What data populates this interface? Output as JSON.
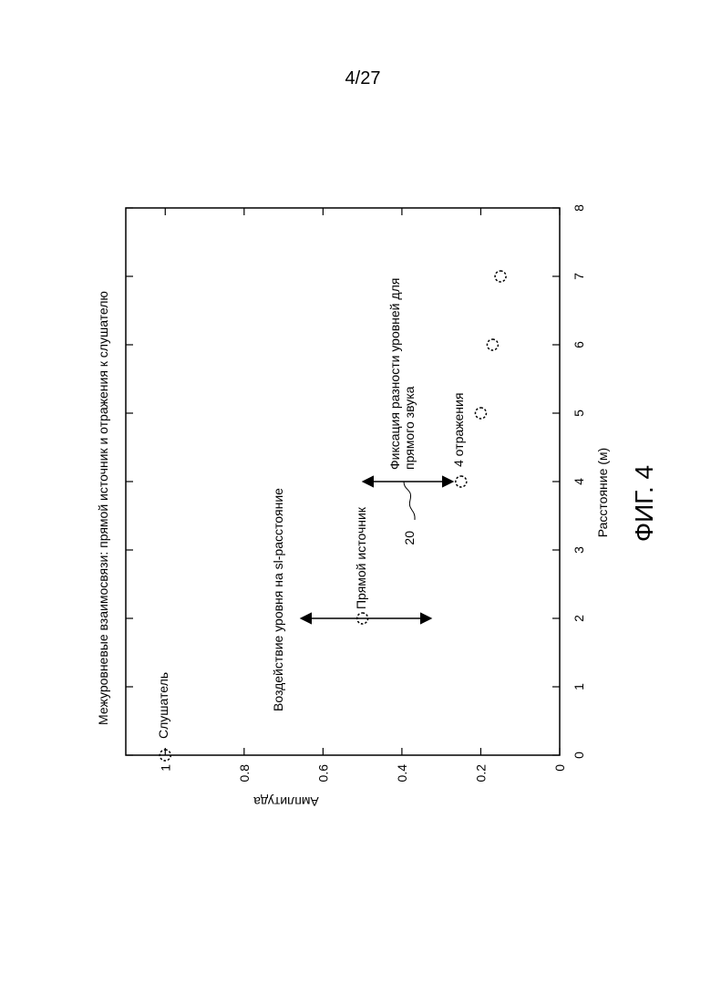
{
  "page_number": "4/27",
  "figure_label": "ФИГ. 4",
  "chart_data": {
    "type": "scatter",
    "title": "Межуровневые взаимосвязи: прямой источник и отражения к слушателю",
    "x_label": "Расстояние (м)",
    "y_label": "Амплитуда",
    "x": [
      0,
      2,
      4,
      5,
      6,
      7
    ],
    "values": [
      1,
      0.5,
      0.25,
      0.2,
      0.17,
      0.15
    ],
    "color": "#000000",
    "xlim": [
      0,
      8
    ],
    "ylim": [
      0,
      1.1
    ],
    "xticks": [
      0,
      1,
      2,
      3,
      4,
      5,
      6,
      7,
      8
    ],
    "yticks": [
      0,
      0.2,
      0.4,
      0.6,
      0.8,
      1
    ],
    "annotations": [
      "Слушатель",
      "Прямой источник",
      "4 отражения",
      "Воздействие уровня на sl-расстояние",
      "Фиксация разности уровней для",
      "прямого звука",
      "20"
    ]
  }
}
